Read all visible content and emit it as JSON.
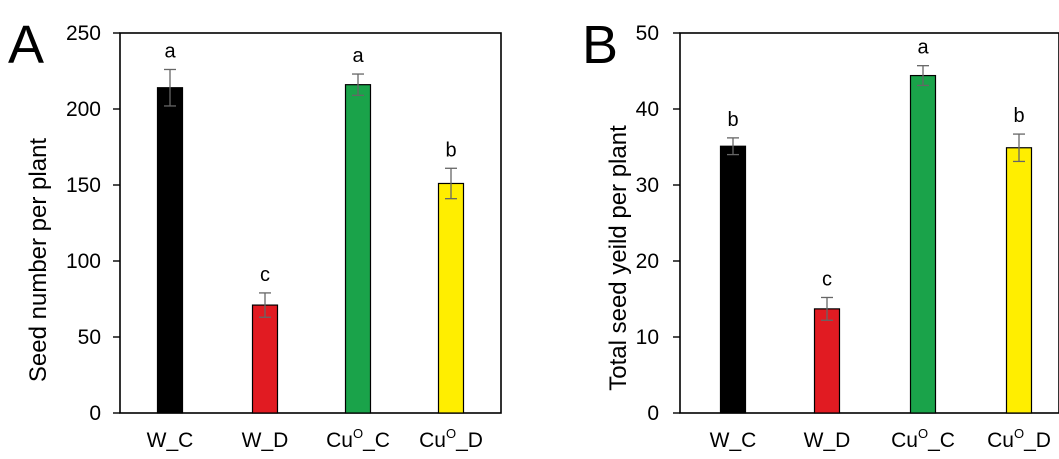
{
  "chart_data": [
    {
      "type": "bar",
      "panel_label": "A",
      "categories": [
        "W_C",
        "W_D",
        "Cu°_C",
        "Cu°_D"
      ],
      "category_parts": [
        {
          "base": "W_C",
          "sup": ""
        },
        {
          "base": "W_D",
          "sup": ""
        },
        {
          "pre": "Cu",
          "sup": "O",
          "post": "_C"
        },
        {
          "pre": "Cu",
          "sup": "O",
          "post": "_D"
        }
      ],
      "values": [
        214,
        71,
        216,
        151
      ],
      "errors": [
        12,
        8,
        7,
        10
      ],
      "significance": [
        "a",
        "c",
        "a",
        "b"
      ],
      "colors": [
        "#000000",
        "#e11b22",
        "#1aa34a",
        "#ffee00"
      ],
      "ylabel": "Seed number  per plant",
      "ylim": [
        0,
        250
      ],
      "yticks": [
        0,
        50,
        100,
        150,
        200,
        250
      ],
      "grid": false
    },
    {
      "type": "bar",
      "panel_label": "B",
      "categories": [
        "W_C",
        "W_D",
        "Cu°_C",
        "Cu°_D"
      ],
      "category_parts": [
        {
          "base": "W_C",
          "sup": ""
        },
        {
          "base": "W_D",
          "sup": ""
        },
        {
          "pre": "Cu",
          "sup": "O",
          "post": "_C"
        },
        {
          "pre": "Cu",
          "sup": "O",
          "post": "_D"
        }
      ],
      "values": [
        35.1,
        13.7,
        44.4,
        34.9
      ],
      "errors": [
        1.1,
        1.5,
        1.3,
        1.8
      ],
      "significance": [
        "b",
        "c",
        "a",
        "b"
      ],
      "colors": [
        "#000000",
        "#e11b22",
        "#1aa34a",
        "#ffee00"
      ],
      "ylabel": "Total seed yeild per plant",
      "ylim": [
        0,
        50
      ],
      "yticks": [
        0,
        10,
        20,
        30,
        40,
        50
      ],
      "grid": false
    }
  ]
}
